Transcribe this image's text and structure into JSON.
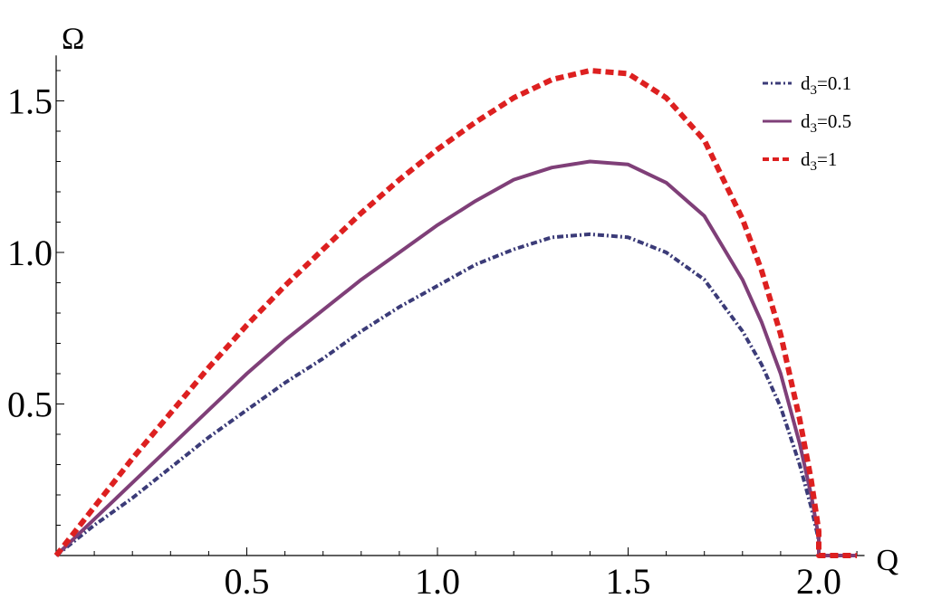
{
  "chart_data": {
    "type": "line",
    "xlabel": "Q",
    "ylabel": "Ω",
    "xlim": [
      0,
      2.12
    ],
    "ylim": [
      0,
      1.65
    ],
    "x_ticks": [
      {
        "value": 0.5,
        "label": "0.5"
      },
      {
        "value": 1.0,
        "label": "1.0"
      },
      {
        "value": 1.5,
        "label": "1.5"
      },
      {
        "value": 2.0,
        "label": "2.0"
      }
    ],
    "y_ticks": [
      {
        "value": 0.5,
        "label": "0.5"
      },
      {
        "value": 1.0,
        "label": "1.0"
      },
      {
        "value": 1.5,
        "label": "1.5"
      }
    ],
    "x_minor_step": 0.1,
    "y_minor_step": 0.1,
    "legend_position": "top-right",
    "series": [
      {
        "name": "d3=0.1",
        "label_base": "d",
        "label_sub": "3",
        "label_rest": "=0.1",
        "color": "#3b3b78",
        "style": "dashdot",
        "x": [
          0,
          0.1,
          0.2,
          0.3,
          0.4,
          0.5,
          0.6,
          0.7,
          0.8,
          0.9,
          1.0,
          1.1,
          1.2,
          1.3,
          1.4,
          1.5,
          1.6,
          1.7,
          1.8,
          1.85,
          1.9,
          1.95,
          1.98,
          2.0,
          2.0,
          2.1
        ],
        "y": [
          0,
          0.1,
          0.19,
          0.29,
          0.39,
          0.48,
          0.57,
          0.65,
          0.74,
          0.82,
          0.89,
          0.96,
          1.01,
          1.05,
          1.06,
          1.05,
          1.0,
          0.91,
          0.74,
          0.63,
          0.49,
          0.3,
          0.16,
          0.05,
          0,
          0
        ]
      },
      {
        "name": "d3=0.5",
        "label_base": "d",
        "label_sub": "3",
        "label_rest": "=0.5",
        "color": "#7f3f78",
        "style": "solid",
        "x": [
          0,
          0.1,
          0.2,
          0.3,
          0.4,
          0.5,
          0.6,
          0.7,
          0.8,
          0.9,
          1.0,
          1.1,
          1.2,
          1.3,
          1.4,
          1.5,
          1.6,
          1.7,
          1.8,
          1.85,
          1.9,
          1.95,
          1.98,
          2.0,
          2.0,
          2.1
        ],
        "y": [
          0,
          0.12,
          0.24,
          0.36,
          0.48,
          0.6,
          0.71,
          0.81,
          0.91,
          1.0,
          1.09,
          1.17,
          1.24,
          1.28,
          1.3,
          1.29,
          1.23,
          1.12,
          0.91,
          0.77,
          0.6,
          0.37,
          0.2,
          0.06,
          0,
          0
        ]
      },
      {
        "name": "d3=1",
        "label_base": "d",
        "label_sub": "3",
        "label_rest": "=1",
        "color": "#dd2020",
        "style": "dashed",
        "x": [
          0,
          0.1,
          0.2,
          0.3,
          0.4,
          0.5,
          0.6,
          0.7,
          0.8,
          0.9,
          1.0,
          1.1,
          1.2,
          1.3,
          1.4,
          1.5,
          1.6,
          1.7,
          1.8,
          1.85,
          1.9,
          1.95,
          1.98,
          2.0,
          2.0,
          2.1
        ],
        "y": [
          0,
          0.16,
          0.32,
          0.47,
          0.62,
          0.76,
          0.89,
          1.01,
          1.13,
          1.24,
          1.34,
          1.43,
          1.51,
          1.57,
          1.6,
          1.59,
          1.51,
          1.37,
          1.11,
          0.94,
          0.73,
          0.45,
          0.25,
          0.08,
          0,
          0
        ]
      }
    ]
  }
}
